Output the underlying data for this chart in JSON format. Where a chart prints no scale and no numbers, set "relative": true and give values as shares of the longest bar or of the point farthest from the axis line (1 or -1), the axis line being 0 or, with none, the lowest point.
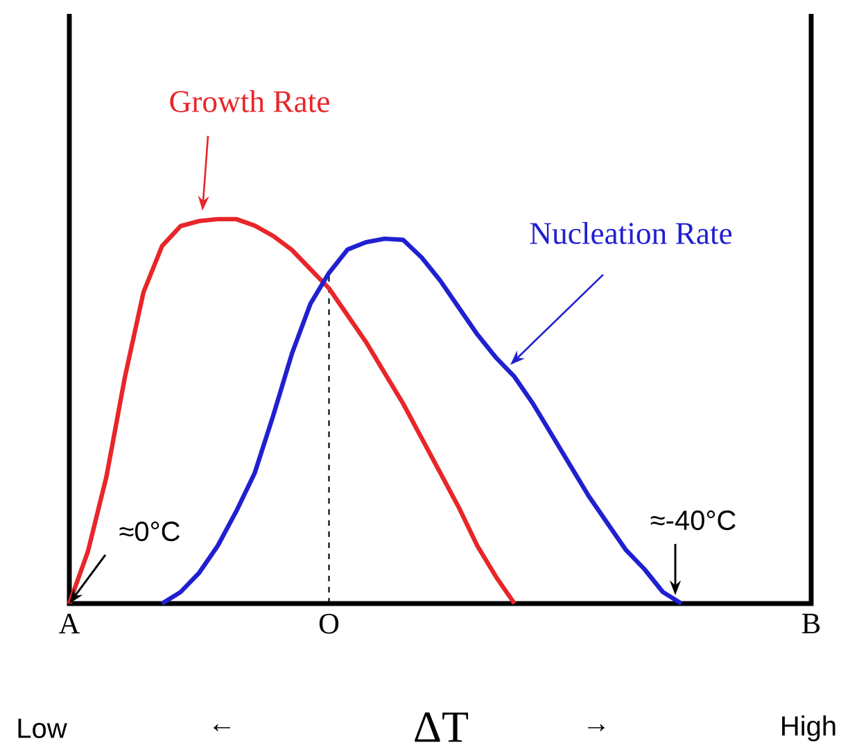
{
  "chart_data": {
    "type": "line",
    "relative": true,
    "xlabel": "ΔT",
    "categories": [
      "A",
      null,
      null,
      null,
      null,
      null,
      null,
      null,
      null,
      null,
      null,
      null,
      null,
      null,
      "O",
      null,
      null,
      null,
      null,
      null,
      null,
      null,
      null,
      null,
      null,
      null,
      null,
      null,
      null,
      null,
      null,
      null,
      null,
      null,
      null,
      null,
      null,
      null,
      null,
      null,
      "B"
    ],
    "series": [
      {
        "name": "Growth Rate",
        "color": "#e8262a",
        "values": [
          0,
          0.135,
          0.33,
          0.59,
          0.81,
          0.93,
          0.982,
          0.995,
          1,
          1,
          0.983,
          0.956,
          0.92,
          0.87,
          0.82,
          0.75,
          0.68,
          0.6,
          0.52,
          0.43,
          0.34,
          0.25,
          0.15,
          0.07,
          0,
          null,
          null,
          null,
          null,
          null,
          null,
          null,
          null,
          null,
          null,
          null,
          null,
          null,
          null,
          null,
          null
        ]
      },
      {
        "name": "Nucleation Rate",
        "color": "#2020d0",
        "values": [
          null,
          null,
          null,
          null,
          null,
          0,
          0.03,
          0.08,
          0.15,
          0.24,
          0.34,
          0.49,
          0.65,
          0.78,
          0.86,
          0.921,
          0.94,
          0.949,
          0.946,
          0.9,
          0.84,
          0.77,
          0.7,
          0.64,
          0.59,
          0.52,
          0.44,
          0.36,
          0.28,
          0.21,
          0.14,
          0.09,
          0.03,
          0,
          null,
          null,
          null,
          null,
          null,
          null,
          null
        ]
      }
    ],
    "ref_lines": [
      {
        "axis": "x",
        "value": "O",
        "line_style": "dashed"
      }
    ],
    "annotations": [
      {
        "text": "≈0°C",
        "x": "A",
        "y": 0
      },
      "≈-40°C",
      "Low",
      "←",
      "→",
      "High"
    ]
  }
}
